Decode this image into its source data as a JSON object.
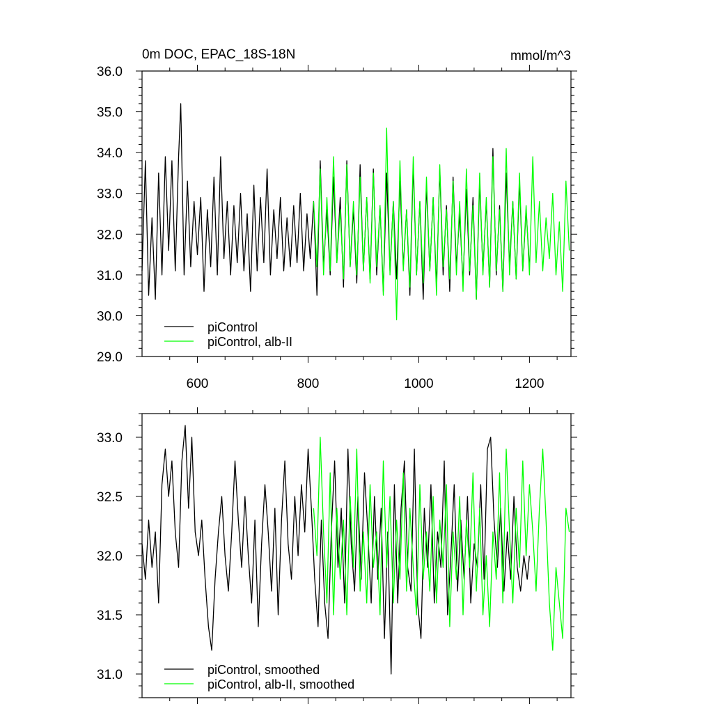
{
  "chart_data": [
    {
      "type": "line",
      "title": "0m DOC, EPAC_18S-18N",
      "units": "mmol/m^3",
      "xlim": [
        500,
        1275
      ],
      "ylim": [
        29.0,
        36.0
      ],
      "x_ticks": [
        600,
        800,
        1000,
        1200
      ],
      "x_tick_labels": [
        "600",
        "800",
        "1000",
        "1200"
      ],
      "y_ticks": [
        29.0,
        30.0,
        31.0,
        32.0,
        33.0,
        34.0,
        35.0,
        36.0
      ],
      "y_tick_labels": [
        "29.0",
        "30.0",
        "31.0",
        "32.0",
        "33.0",
        "34.0",
        "35.0",
        "36.0"
      ],
      "grid": false,
      "legend_position": "bottom-left",
      "series": [
        {
          "name": "piControl",
          "color": "#000000",
          "x": [
            500,
            506,
            512,
            518,
            524,
            530,
            536,
            542,
            548,
            554,
            560,
            566,
            570,
            576,
            582,
            588,
            594,
            600,
            606,
            612,
            618,
            624,
            630,
            636,
            642,
            648,
            654,
            660,
            666,
            672,
            678,
            684,
            690,
            696,
            702,
            708,
            714,
            720,
            726,
            732,
            738,
            744,
            750,
            756,
            762,
            768,
            774,
            780,
            786,
            792,
            798,
            804,
            810,
            816,
            822,
            828,
            834,
            840,
            846,
            852,
            858,
            864,
            870,
            876,
            882,
            888,
            894,
            900,
            906,
            912,
            918,
            924,
            930,
            936,
            942,
            948,
            954,
            960,
            966,
            972,
            978,
            984,
            990,
            996,
            1002,
            1008,
            1014,
            1020,
            1026,
            1032,
            1038,
            1044,
            1050,
            1056,
            1062,
            1068,
            1074,
            1080,
            1086,
            1092,
            1098,
            1104,
            1110,
            1116,
            1122,
            1128,
            1134,
            1140,
            1146,
            1152,
            1158,
            1164,
            1170,
            1176,
            1182,
            1188,
            1194,
            1200
          ],
          "y": [
            31.1,
            33.8,
            30.5,
            32.4,
            30.4,
            33.5,
            31.0,
            33.9,
            31.6,
            33.8,
            31.1,
            33.9,
            35.2,
            31.0,
            33.3,
            31.2,
            32.8,
            31.5,
            32.9,
            30.6,
            32.6,
            31.2,
            33.4,
            31.0,
            33.9,
            31.4,
            32.8,
            31.0,
            32.7,
            31.3,
            33.0,
            31.1,
            32.5,
            30.6,
            33.2,
            31.1,
            32.9,
            31.3,
            33.6,
            31.0,
            32.6,
            31.4,
            32.9,
            31.1,
            32.4,
            31.2,
            32.7,
            31.3,
            33.0,
            31.1,
            32.5,
            31.4,
            32.8,
            30.5,
            33.8,
            31.2,
            32.6,
            31.0,
            33.4,
            31.3,
            32.9,
            30.7,
            33.8,
            31.2,
            32.6,
            30.8,
            33.7,
            31.1,
            32.9,
            30.9,
            33.6,
            31.0,
            32.7,
            30.6,
            33.5,
            31.1,
            32.8,
            30.9,
            33.3,
            31.2,
            32.6,
            30.5,
            33.7,
            31.0,
            32.8,
            30.4,
            33.2,
            31.1,
            32.9,
            30.7,
            33.6,
            31.0,
            32.7,
            30.6,
            33.4,
            31.2,
            32.5,
            30.8,
            33.1,
            31.0,
            32.9,
            30.4,
            33.3,
            31.1,
            32.8,
            30.7,
            34.1,
            31.0,
            32.7,
            30.6,
            33.5,
            31.2,
            32.8,
            30.9,
            33.3,
            31.1,
            32.6,
            31.2
          ]
        },
        {
          "name": "piControl, alb-II",
          "color": "#00ff00",
          "x": [
            810,
            816,
            822,
            828,
            834,
            840,
            846,
            852,
            858,
            864,
            870,
            876,
            882,
            888,
            894,
            900,
            906,
            912,
            918,
            924,
            930,
            936,
            942,
            948,
            954,
            960,
            966,
            972,
            978,
            984,
            990,
            996,
            1002,
            1008,
            1014,
            1020,
            1026,
            1032,
            1038,
            1044,
            1050,
            1056,
            1062,
            1068,
            1074,
            1080,
            1086,
            1092,
            1098,
            1104,
            1110,
            1116,
            1122,
            1128,
            1134,
            1140,
            1146,
            1152,
            1158,
            1164,
            1170,
            1176,
            1182,
            1188,
            1194,
            1200,
            1206,
            1212,
            1218,
            1224,
            1230,
            1236,
            1242,
            1248,
            1254,
            1260,
            1266,
            1272
          ],
          "y": [
            32.8,
            31.2,
            33.6,
            31.0,
            32.9,
            31.1,
            33.9,
            31.3,
            32.6,
            30.9,
            33.7,
            31.2,
            32.8,
            31.0,
            33.4,
            31.1,
            32.9,
            30.8,
            33.5,
            31.2,
            32.7,
            30.5,
            34.6,
            31.0,
            32.8,
            29.9,
            33.8,
            31.1,
            32.6,
            30.7,
            33.9,
            31.0,
            32.8,
            30.8,
            33.4,
            31.1,
            32.9,
            30.5,
            33.7,
            31.2,
            32.6,
            30.9,
            33.3,
            31.0,
            32.8,
            30.6,
            33.6,
            31.1,
            32.7,
            30.4,
            33.5,
            31.0,
            32.9,
            30.7,
            33.9,
            31.1,
            32.6,
            30.6,
            34.1,
            31.0,
            32.8,
            30.9,
            33.5,
            31.1,
            32.7,
            31.0,
            33.9,
            31.3,
            32.8,
            31.1,
            32.4,
            31.4,
            33.0,
            31.0,
            32.3,
            30.6,
            33.3,
            31.6
          ]
        }
      ]
    },
    {
      "type": "line",
      "xlim": [
        500,
        1275
      ],
      "ylim": [
        30.8,
        33.2
      ],
      "x_ticks": [
        600,
        800,
        1000,
        1200
      ],
      "y_ticks": [
        31.0,
        31.5,
        32.0,
        32.5,
        33.0
      ],
      "y_tick_labels": [
        "31.0",
        "31.5",
        "32.0",
        "32.5",
        "33.0"
      ],
      "grid": false,
      "legend_position": "bottom-left",
      "series": [
        {
          "name": "piControl, smoothed",
          "color": "#000000",
          "x": [
            500,
            506,
            512,
            518,
            524,
            530,
            536,
            542,
            548,
            554,
            560,
            566,
            572,
            578,
            584,
            590,
            596,
            602,
            608,
            614,
            620,
            626,
            632,
            638,
            644,
            650,
            656,
            662,
            668,
            674,
            680,
            686,
            692,
            698,
            704,
            710,
            716,
            722,
            728,
            734,
            740,
            746,
            752,
            758,
            764,
            770,
            776,
            782,
            788,
            794,
            800,
            806,
            812,
            818,
            824,
            830,
            836,
            842,
            848,
            854,
            860,
            866,
            872,
            878,
            884,
            890,
            896,
            902,
            908,
            914,
            920,
            926,
            932,
            938,
            944,
            950,
            956,
            962,
            968,
            974,
            980,
            986,
            992,
            998,
            1004,
            1010,
            1016,
            1022,
            1028,
            1034,
            1040,
            1046,
            1052,
            1058,
            1064,
            1070,
            1076,
            1082,
            1088,
            1094,
            1100,
            1106,
            1112,
            1118,
            1124,
            1130,
            1136,
            1142,
            1148,
            1154,
            1160,
            1166,
            1172,
            1178,
            1184,
            1190,
            1196,
            1200
          ],
          "y": [
            32.1,
            31.8,
            32.3,
            31.9,
            32.2,
            31.6,
            32.6,
            32.9,
            32.5,
            32.8,
            32.2,
            31.9,
            32.8,
            33.1,
            32.4,
            33.0,
            32.2,
            32.0,
            32.3,
            31.8,
            31.4,
            31.2,
            31.8,
            32.2,
            32.5,
            32.0,
            31.7,
            32.2,
            32.8,
            32.3,
            31.9,
            32.5,
            32.0,
            31.6,
            32.3,
            31.4,
            32.1,
            32.6,
            32.2,
            31.7,
            32.4,
            31.5,
            32.3,
            32.8,
            32.1,
            31.8,
            32.5,
            32.0,
            32.6,
            32.2,
            32.9,
            32.4,
            31.8,
            31.4,
            32.3,
            31.6,
            31.3,
            32.2,
            32.8,
            31.9,
            32.4,
            31.6,
            32.9,
            32.1,
            31.7,
            32.5,
            31.8,
            32.7,
            32.2,
            31.6,
            32.5,
            31.8,
            32.4,
            31.3,
            32.2,
            31.0,
            32.6,
            31.6,
            32.4,
            32.8,
            31.9,
            31.7,
            32.9,
            31.6,
            31.3,
            32.4,
            31.9,
            32.6,
            31.6,
            32.2,
            31.9,
            32.8,
            31.5,
            32.0,
            32.6,
            31.7,
            32.3,
            31.8,
            32.5,
            31.6,
            32.1,
            31.9,
            32.6,
            31.8,
            32.9,
            33.0,
            32.3,
            31.9,
            32.4,
            31.7,
            32.2,
            31.8,
            32.5,
            31.9,
            31.7,
            32.0,
            31.8,
            32.0
          ]
        },
        {
          "name": "piControl, alb-II, smoothed",
          "color": "#00ff00",
          "x": [
            810,
            816,
            822,
            828,
            834,
            840,
            846,
            852,
            858,
            864,
            870,
            876,
            882,
            888,
            894,
            900,
            906,
            912,
            918,
            924,
            930,
            936,
            942,
            948,
            954,
            960,
            966,
            972,
            978,
            984,
            990,
            996,
            1002,
            1008,
            1014,
            1020,
            1026,
            1032,
            1038,
            1044,
            1050,
            1056,
            1062,
            1068,
            1074,
            1080,
            1086,
            1092,
            1098,
            1104,
            1110,
            1116,
            1122,
            1128,
            1134,
            1140,
            1146,
            1152,
            1158,
            1164,
            1170,
            1176,
            1182,
            1188,
            1194,
            1200,
            1206,
            1212,
            1218,
            1224,
            1230,
            1236,
            1242,
            1248,
            1254,
            1260,
            1266,
            1272
          ],
          "y": [
            32.4,
            32.0,
            33.0,
            32.2,
            31.6,
            32.7,
            31.5,
            32.4,
            31.8,
            32.3,
            31.5,
            32.5,
            31.9,
            32.9,
            31.7,
            32.2,
            31.6,
            32.6,
            31.9,
            32.2,
            31.5,
            32.8,
            31.9,
            32.5,
            31.6,
            32.3,
            31.8,
            32.7,
            31.7,
            32.4,
            31.9,
            31.5,
            32.6,
            31.8,
            32.2,
            31.7,
            32.5,
            31.6,
            32.3,
            31.9,
            32.6,
            31.4,
            32.2,
            31.8,
            32.5,
            31.5,
            32.3,
            31.9,
            32.7,
            31.7,
            32.4,
            31.5,
            32.0,
            31.4,
            32.2,
            31.8,
            32.7,
            31.6,
            32.9,
            32.2,
            31.6,
            32.4,
            31.9,
            32.8,
            32.0,
            32.6,
            32.2,
            31.7,
            32.4,
            32.9,
            32.3,
            31.6,
            31.2,
            31.9,
            31.6,
            31.3,
            32.4,
            32.2
          ]
        }
      ]
    }
  ]
}
